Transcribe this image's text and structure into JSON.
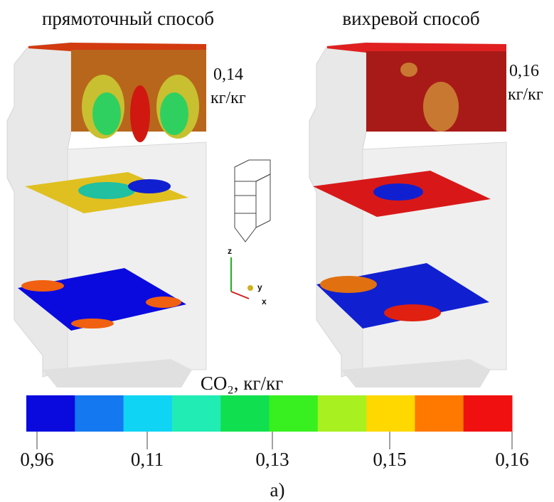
{
  "panels": [
    {
      "title": "прямоточный способ",
      "value": "0,14",
      "unit": "кг/кг"
    },
    {
      "title": "вихревой способ",
      "value": "0,16",
      "unit": "кг/кг"
    }
  ],
  "axes": {
    "z": "z",
    "y": "y",
    "x": "x"
  },
  "colorbar": {
    "title": "CO₂, кг/кг",
    "colors": [
      "#0a0adf",
      "#1478f0",
      "#10d4f4",
      "#20ecb4",
      "#10e050",
      "#38f020",
      "#a8f020",
      "#ffd800",
      "#ff7800",
      "#f01010"
    ],
    "ticks": [
      "0,96",
      "0,11",
      "0,13",
      "0,15",
      "0,16"
    ]
  },
  "caption": "а)"
}
